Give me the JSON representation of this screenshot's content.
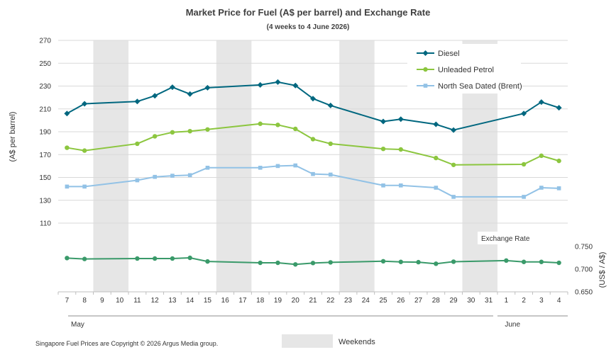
{
  "chart_data": {
    "type": "line",
    "title": "Market Price for Fuel (A$ per barrel) and Exchange Rate",
    "subtitle": "(4 weeks to 4 June 2026)",
    "ylabel": "(A$ per barrel)",
    "y2label": "(US$ / A$)",
    "exchange_label": "Exchange Rate",
    "x": [
      "7",
      "8",
      "9",
      "10",
      "11",
      "12",
      "13",
      "14",
      "15",
      "16",
      "17",
      "18",
      "19",
      "20",
      "21",
      "22",
      "23",
      "24",
      "25",
      "26",
      "27",
      "28",
      "29",
      "30",
      "31",
      "1",
      "2",
      "3",
      "4"
    ],
    "months": [
      {
        "label": "May",
        "start": 0,
        "end": 24
      },
      {
        "label": "June",
        "start": 25,
        "end": 28
      }
    ],
    "weekend_label": "Weekends",
    "weekends": [
      [
        2,
        3
      ],
      [
        9,
        10
      ],
      [
        16,
        17
      ],
      [
        23,
        24
      ]
    ],
    "ylim": [
      110,
      270
    ],
    "yticks": [
      "270",
      "250",
      "230",
      "210",
      "190",
      "170",
      "150",
      "130",
      "110"
    ],
    "y2lim": [
      0.65,
      0.75
    ],
    "y2ticks": [
      "0.750",
      "0.700",
      "0.650"
    ],
    "legend_position": "top-right",
    "series": [
      {
        "name": "Diesel",
        "color": "#00677f",
        "marker": "diamond",
        "values": [
          206,
          214.5,
          null,
          null,
          216.5,
          221.5,
          229,
          223,
          228.5,
          null,
          null,
          231,
          233.5,
          230.5,
          219,
          213,
          null,
          null,
          199,
          201,
          null,
          196.5,
          191.5,
          null,
          null,
          null,
          206,
          216,
          211
        ]
      },
      {
        "name": "Unleaded Petrol",
        "color": "#8cc63f",
        "marker": "circle",
        "values": [
          176,
          173.5,
          null,
          null,
          179.5,
          186,
          189.5,
          190.5,
          192,
          null,
          null,
          197,
          196,
          192.5,
          183.5,
          179.5,
          null,
          null,
          175,
          174.5,
          null,
          167,
          161,
          null,
          null,
          null,
          161.5,
          169,
          164.5
        ]
      },
      {
        "name": "North Sea Dated (Brent)",
        "color": "#92c2e6",
        "marker": "square",
        "values": [
          142,
          142,
          null,
          null,
          147.5,
          150.5,
          151.5,
          152,
          158.5,
          null,
          null,
          158.5,
          160,
          160.5,
          153,
          152.5,
          null,
          null,
          143,
          143,
          null,
          141,
          133,
          null,
          null,
          null,
          133,
          141,
          140.5
        ]
      },
      {
        "name": "Exchange Rate",
        "color": "#3a9a6a",
        "marker": "circle",
        "axis": "right",
        "values": [
          0.7245,
          0.7225,
          null,
          null,
          0.7235,
          0.7235,
          0.7235,
          0.725,
          0.717,
          null,
          null,
          0.714,
          0.714,
          0.7105,
          0.7135,
          0.715,
          null,
          null,
          0.7175,
          0.716,
          0.7155,
          0.712,
          0.7165,
          null,
          null,
          0.719,
          0.716,
          0.716,
          0.714
        ]
      }
    ],
    "footnote": "Singapore Fuel Prices are Copyright © 2026 Argus Media group."
  }
}
